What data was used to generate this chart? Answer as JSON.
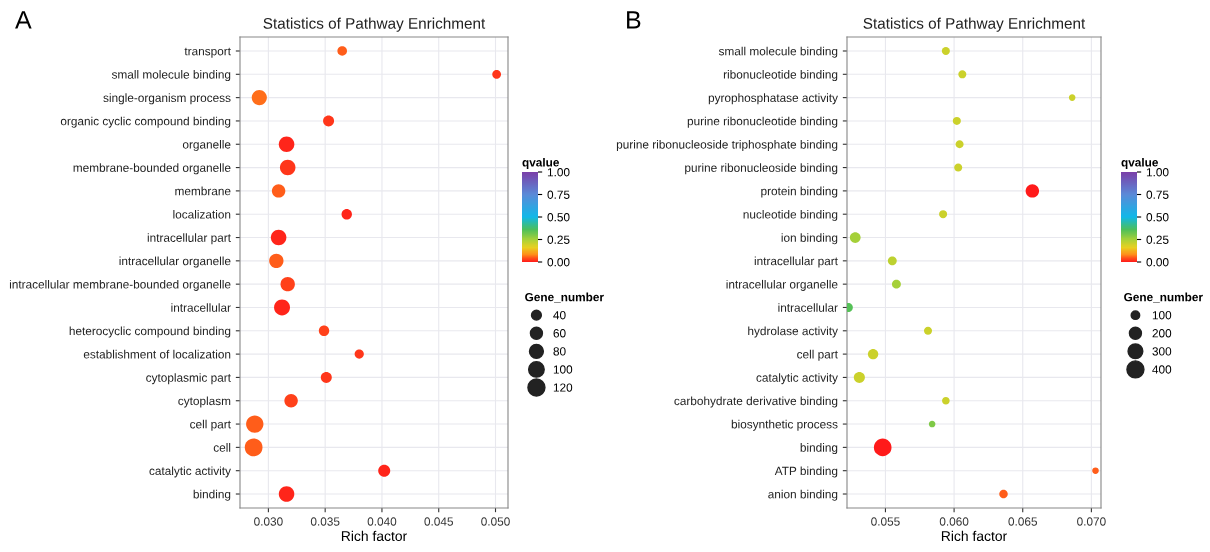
{
  "chart_data": [
    {
      "type": "bubble",
      "title": "Statistics of Pathway Enrichment",
      "xlabel": "Rich factor",
      "clabel": "qvalue",
      "legend_title": "Gene_number",
      "annotations": [
        "A"
      ],
      "categories": [
        "transport",
        "small molecule binding",
        "single-organism process",
        "organic cyclic compound binding",
        "organelle",
        "membrane-bounded organelle",
        "membrane",
        "localization",
        "intracellular part",
        "intracellular organelle",
        "intracellular membrane-bounded organelle",
        "intracellular",
        "heterocyclic compound binding",
        "establishment of localization",
        "cytoplasmic part",
        "cytoplasm",
        "cell part",
        "cell",
        "catalytic activity",
        "binding"
      ],
      "values": [
        0.0365,
        0.0501,
        0.0292,
        0.0353,
        0.0316,
        0.0317,
        0.0309,
        0.0369,
        0.0309,
        0.0307,
        0.0317,
        0.0312,
        0.0349,
        0.038,
        0.0351,
        0.032,
        0.0288,
        0.0287,
        0.0402,
        0.0316
      ],
      "sizes": [
        38,
        32,
        95,
        50,
        100,
        100,
        75,
        45,
        100,
        85,
        85,
        105,
        45,
        35,
        50,
        75,
        125,
        130,
        60,
        100
      ],
      "cvalues": [
        0.05,
        0.02,
        0.06,
        0.02,
        0.01,
        0.02,
        0.05,
        0.01,
        0.01,
        0.05,
        0.03,
        0.01,
        0.03,
        0.02,
        0.02,
        0.03,
        0.05,
        0.05,
        0.01,
        0.01
      ],
      "size_legend": [
        40,
        60,
        80,
        100,
        120
      ],
      "xlim": [
        0.0275,
        0.0511
      ],
      "xticks": [
        {
          "value": 0.03,
          "label": "0.030"
        },
        {
          "value": 0.035,
          "label": "0.035"
        },
        {
          "value": 0.04,
          "label": "0.040"
        },
        {
          "value": 0.045,
          "label": "0.045"
        },
        {
          "value": 0.05,
          "label": "0.050"
        }
      ],
      "clim": [
        0,
        1
      ],
      "cticks": [
        {
          "value": 0,
          "label": "0.00"
        },
        {
          "value": 0.25,
          "label": "0.25"
        },
        {
          "value": 0.5,
          "label": "0.50"
        },
        {
          "value": 0.75,
          "label": "0.75"
        },
        {
          "value": 1,
          "label": "1.00"
        }
      ],
      "grid": true,
      "orientation": "horizontal"
    },
    {
      "type": "bubble",
      "title": "Statistics of Pathway Enrichment",
      "xlabel": "Rich factor",
      "clabel": "qvalue",
      "legend_title": "Gene_number",
      "annotations": [
        "B"
      ],
      "categories": [
        "small molecule binding",
        "ribonucleotide binding",
        "pyrophosphatase activity",
        "purine ribonucleotide binding",
        "purine ribonucleoside triphosphate binding",
        "purine ribonucleoside binding",
        "protein binding",
        "nucleotide binding",
        "ion binding",
        "intracellular part",
        "intracellular organelle",
        "intracellular",
        "hydrolase activity",
        "cell part",
        "catalytic activity",
        "carbohydrate derivative binding",
        "biosynthetic process",
        "binding",
        "ATP binding",
        "anion binding"
      ],
      "values": [
        0.0594,
        0.0606,
        0.0686,
        0.0602,
        0.0604,
        0.0603,
        0.0657,
        0.0592,
        0.0528,
        0.0555,
        0.0558,
        0.0523,
        0.0581,
        0.0541,
        0.0531,
        0.0594,
        0.0584,
        0.0548,
        0.0703,
        0.0636
      ],
      "sizes": [
        90,
        90,
        60,
        90,
        90,
        90,
        250,
        90,
        160,
        110,
        110,
        110,
        90,
        150,
        170,
        80,
        60,
        430,
        60,
        100
      ],
      "cvalues": [
        0.2,
        0.2,
        0.2,
        0.2,
        0.2,
        0.2,
        0.0,
        0.2,
        0.25,
        0.22,
        0.25,
        0.35,
        0.2,
        0.2,
        0.2,
        0.2,
        0.3,
        0.0,
        0.05,
        0.05
      ],
      "size_legend": [
        100,
        200,
        300,
        400
      ],
      "xlim": [
        0.0522,
        0.0707
      ],
      "xticks": [
        {
          "value": 0.055,
          "label": "0.055"
        },
        {
          "value": 0.06,
          "label": "0.060"
        },
        {
          "value": 0.065,
          "label": "0.065"
        },
        {
          "value": 0.07,
          "label": "0.070"
        }
      ],
      "clim": [
        0,
        1
      ],
      "cticks": [
        {
          "value": 0,
          "label": "0.00"
        },
        {
          "value": 0.25,
          "label": "0.25"
        },
        {
          "value": 0.5,
          "label": "0.50"
        },
        {
          "value": 0.75,
          "label": "0.75"
        },
        {
          "value": 1,
          "label": "1.00"
        }
      ],
      "grid": true,
      "orientation": "horizontal"
    }
  ]
}
